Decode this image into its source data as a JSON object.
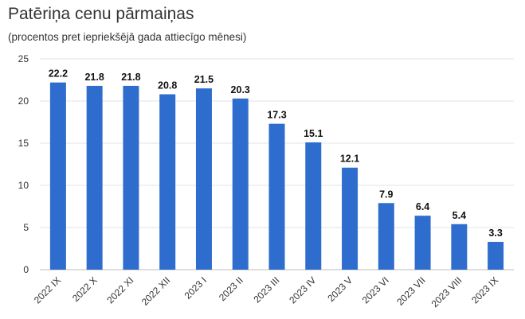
{
  "title": "Patēriņa cenu pārmaiņas",
  "subtitle": "(procentos pret iepriekšējā gada attiecīgo mēnesi)",
  "colors": {
    "bar": "#2e6dce",
    "grid": "#e3e3e3",
    "axis": "#bdbdbd"
  },
  "chart_data": {
    "type": "bar",
    "title": "Patēriņa cenu pārmaiņas",
    "subtitle": "(procentos pret iepriekšējā gada attiecīgo mēnesi)",
    "categories": [
      "2022 IX",
      "2022 X",
      "2022 XI",
      "2022 XII",
      "2023 I",
      "2023 II",
      "2023 III",
      "2023 IV",
      "2023 V",
      "2023 VI",
      "2023 VII",
      "2023 VIII",
      "2023 IX"
    ],
    "values": [
      22.2,
      21.8,
      21.8,
      20.8,
      21.5,
      20.3,
      17.3,
      15.1,
      12.1,
      7.9,
      6.4,
      5.4,
      3.3
    ],
    "data_labels": [
      "22.2",
      "21.8",
      "21.8",
      "20.8",
      "21.5",
      "20.3",
      "17.3",
      "15.1",
      "12.1",
      "7.9",
      "6.4",
      "5.4",
      "3.3"
    ],
    "yticks": [
      0,
      5,
      10,
      15,
      20,
      25
    ],
    "ylim": [
      0,
      25
    ],
    "xlabel": "",
    "ylabel": "",
    "grid": true,
    "legend": "none"
  }
}
